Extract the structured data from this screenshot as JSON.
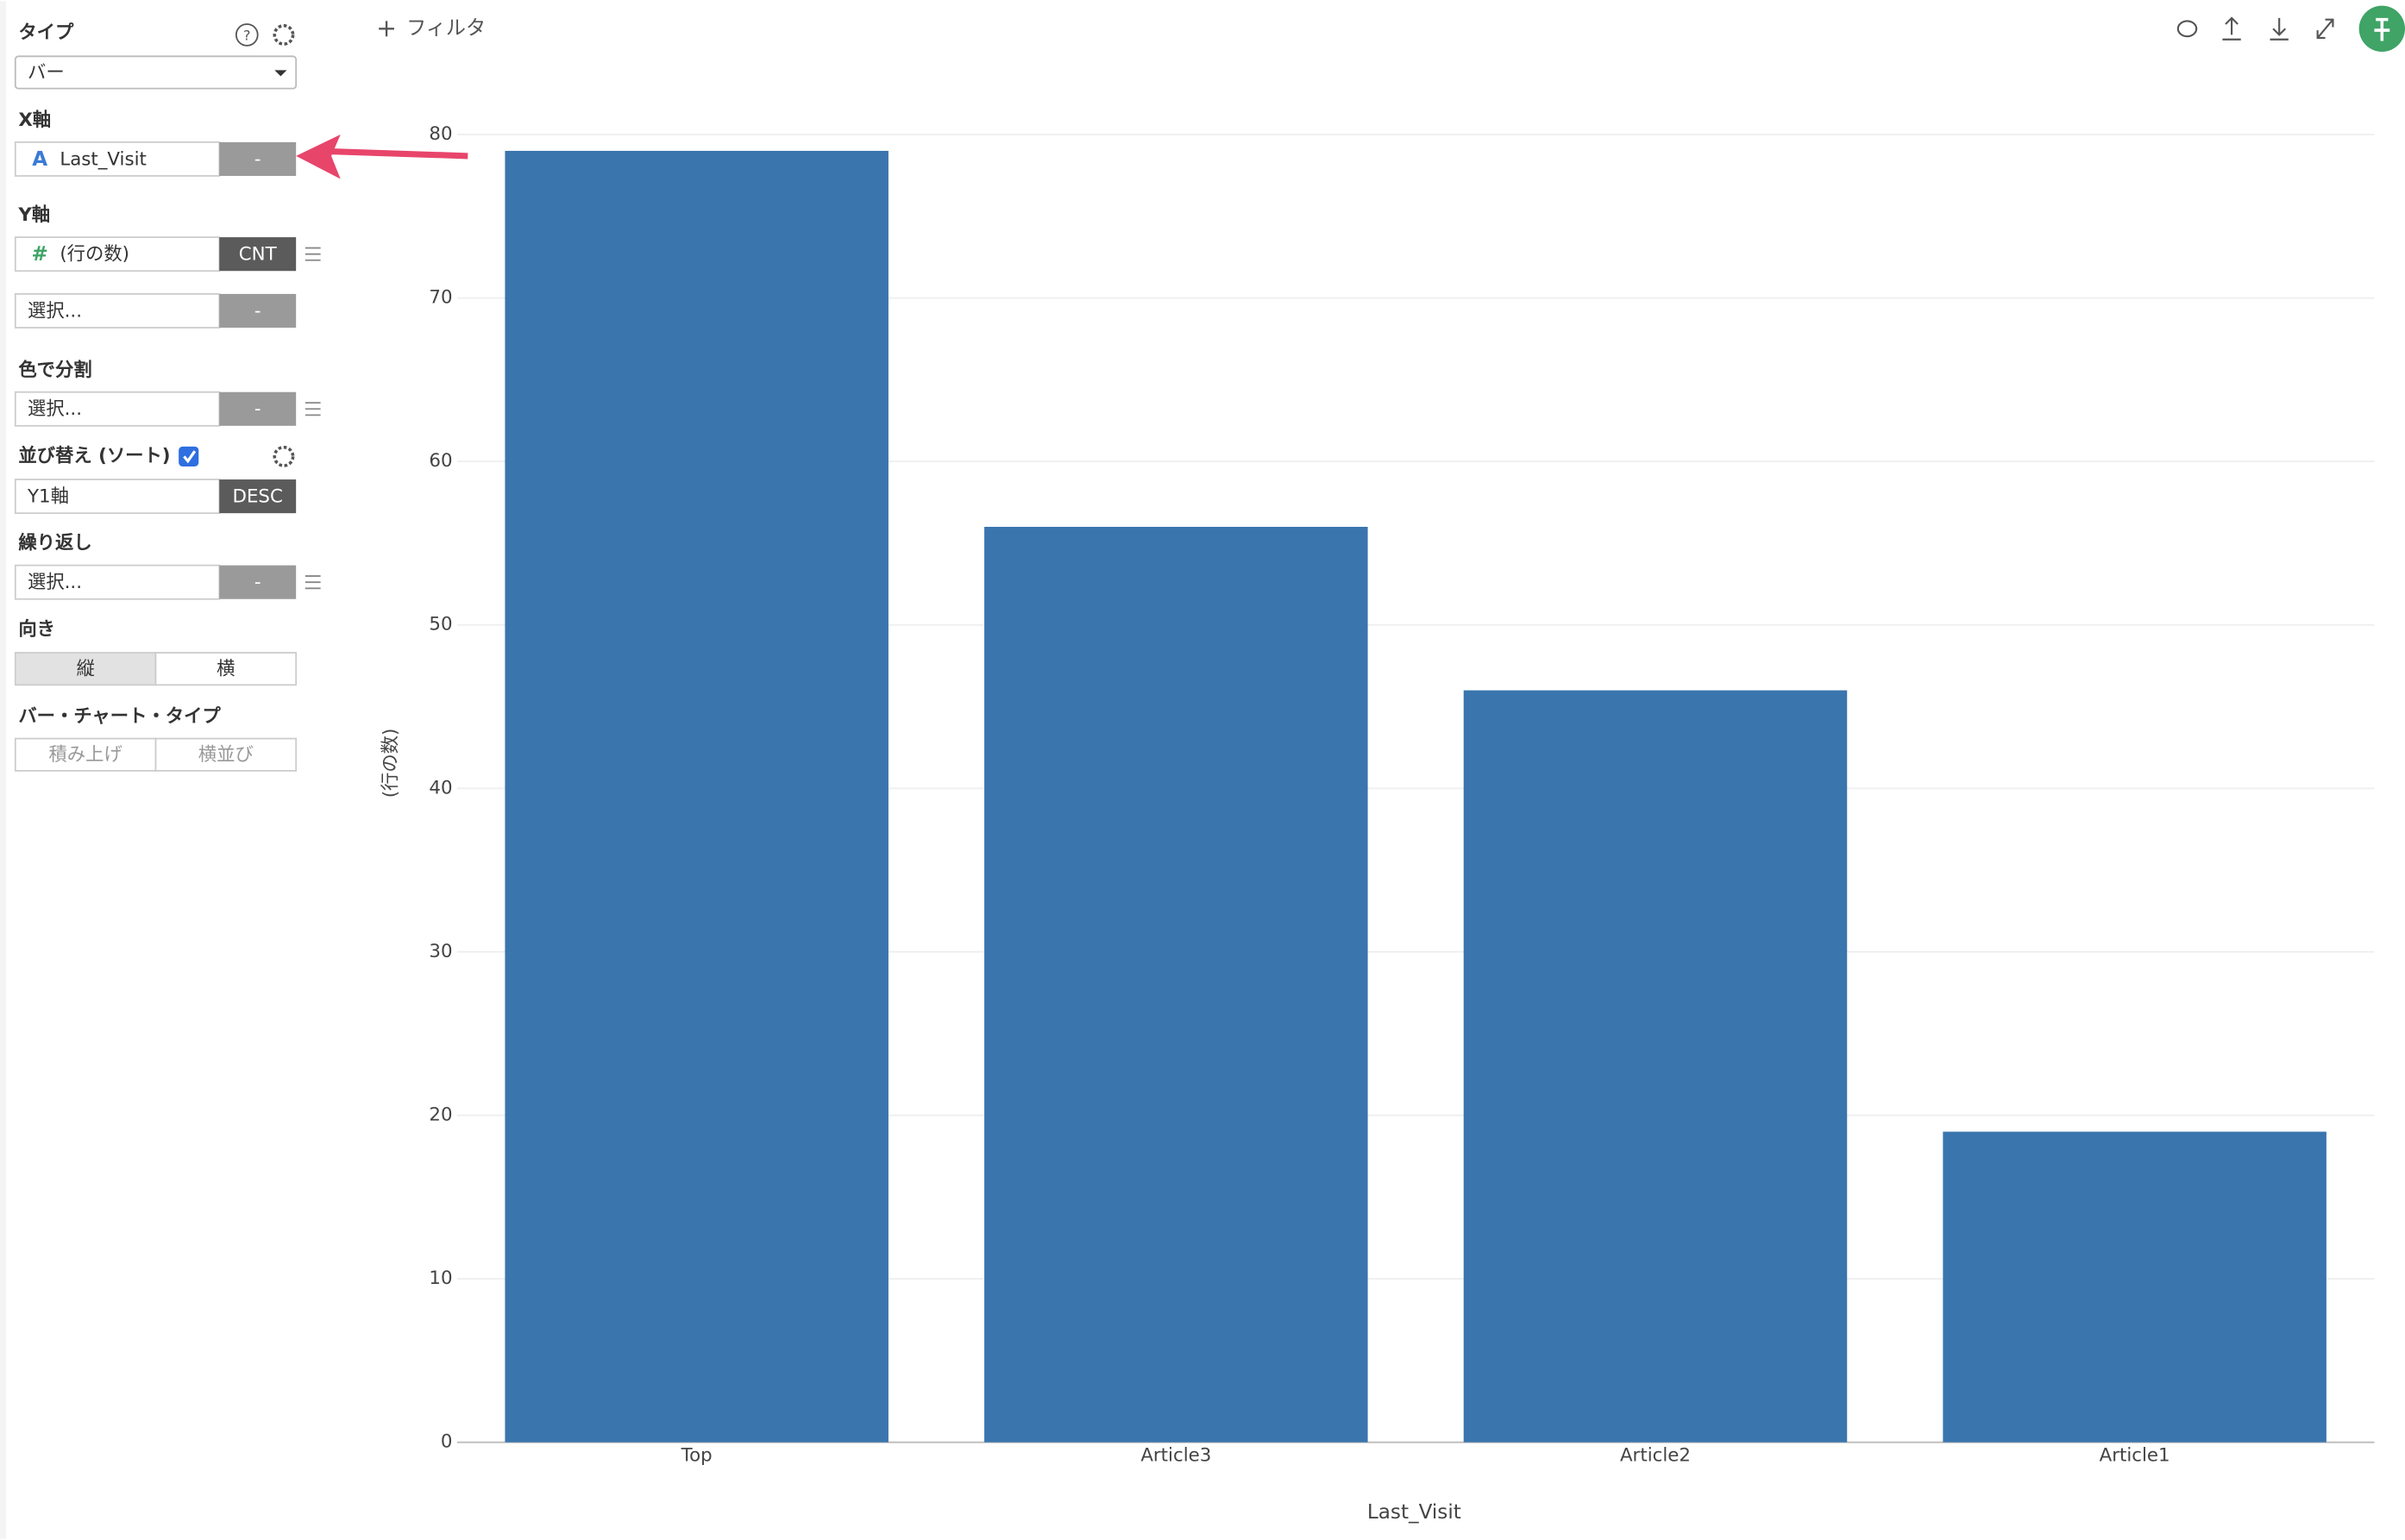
{
  "toolbar": {
    "filter": "フィルタ"
  },
  "sidebar": {
    "type_section": {
      "label": "タイプ",
      "value": "バー"
    },
    "x_axis": {
      "label": "X軸",
      "icon": "A",
      "field": "Last_Visit",
      "button": "-"
    },
    "y_axis": {
      "label": "Y軸",
      "icon": "#",
      "field": "(行の数)",
      "aggregate": "CNT",
      "second_field": "選択...",
      "second_button": "-"
    },
    "color_split": {
      "label": "色で分割",
      "field": "選択...",
      "button": "-"
    },
    "sort": {
      "label": "並び替え (ソート)",
      "checked": true,
      "field": "Y1軸",
      "order": "DESC"
    },
    "repeat": {
      "label": "繰り返し",
      "field": "選択...",
      "button": "-"
    },
    "orientation": {
      "label": "向き",
      "options": [
        "縦",
        "横"
      ],
      "selected": 0
    },
    "bar_chart_type": {
      "label": "バー・チャート・タイプ",
      "options": [
        "積み上げ",
        "横並び"
      ]
    }
  },
  "chart_data": {
    "type": "bar",
    "x_label": "Last_Visit",
    "y_label": "(行の数)",
    "categories": [
      "Top",
      "Article3",
      "Article2",
      "Article1"
    ],
    "values": [
      79,
      56,
      46,
      19
    ],
    "color": "#3a75ae",
    "ylim": [
      0,
      80
    ],
    "yticks": [
      0,
      10,
      20,
      30,
      40,
      50,
      60,
      70,
      80
    ],
    "grid": true
  }
}
